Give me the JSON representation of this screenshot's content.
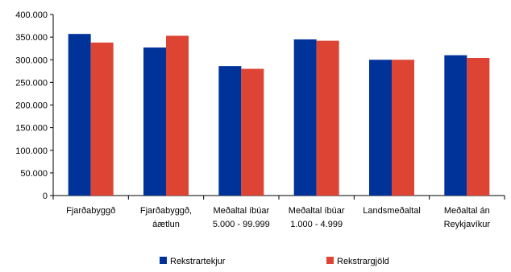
{
  "chart_data": {
    "type": "bar",
    "categories": [
      [
        "Fjarðabyggð"
      ],
      [
        "Fjarðabyggð,",
        "áætlun"
      ],
      [
        "Meðaltal íbúar",
        "5.000 - 99.999"
      ],
      [
        "Meðaltal íbúar",
        "1.000 - 4.999"
      ],
      [
        "Landsmeðaltal"
      ],
      [
        "Meðaltal án",
        "Reykjavíkur"
      ]
    ],
    "series": [
      {
        "name": "Rekstrartekjur",
        "color": "#003399",
        "values": [
          357000,
          327000,
          286000,
          345000,
          300000,
          310000
        ]
      },
      {
        "name": "Rekstrargjöld",
        "color": "#DD4433",
        "values": [
          338000,
          353000,
          280000,
          342000,
          300000,
          304000
        ]
      }
    ],
    "yticks": [
      "0",
      "50.000",
      "100.000",
      "150.000",
      "200.000",
      "250.000",
      "300.000",
      "350.000",
      "400.000"
    ],
    "ylim": [
      0,
      400000
    ],
    "grid": false,
    "legend_position": "bottom",
    "title": "",
    "xlabel": "",
    "ylabel": ""
  }
}
